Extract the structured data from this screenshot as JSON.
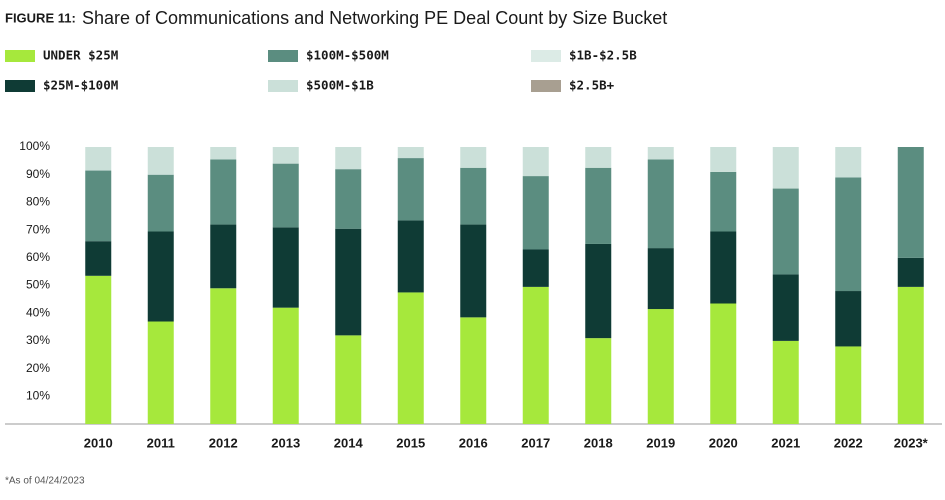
{
  "chart_data": {
    "type": "stacked_bar",
    "figure_label": "FIGURE 11:",
    "title": "Share of Communications and Networking PE Deal Count by Size Bucket",
    "footnote": "*As of 04/24/2023",
    "categories": [
      "2010",
      "2011",
      "2012",
      "2013",
      "2014",
      "2015",
      "2016",
      "2017",
      "2018",
      "2019",
      "2020",
      "2021",
      "2022",
      "2023*"
    ],
    "series": [
      {
        "name": "UNDER $25M",
        "color": "#a6e83c",
        "values": [
          53.5,
          37,
          49,
          42,
          32,
          47.5,
          38.5,
          49.5,
          31,
          41.5,
          43.5,
          30,
          28,
          49.5
        ]
      },
      {
        "name": "$25M-$100M",
        "color": "#0f3b35",
        "values": [
          12.5,
          32.5,
          23,
          29,
          38.5,
          26,
          33.5,
          13.5,
          34,
          22,
          26,
          24,
          20,
          10.5
        ]
      },
      {
        "name": "$100M-$500M",
        "color": "#5b8d80",
        "values": [
          25.5,
          20.5,
          23.5,
          23,
          21.5,
          22.5,
          20.5,
          26.5,
          27.5,
          32,
          21.5,
          31,
          41,
          40
        ]
      },
      {
        "name": "$500M-$1B",
        "color": "#cbe0d9",
        "values": [
          8.5,
          10,
          4.5,
          6,
          8,
          4,
          7.5,
          10.5,
          7.5,
          4.5,
          9,
          15,
          11,
          0
        ]
      },
      {
        "name": "$1B-$2.5B",
        "color": "#dcebe6",
        "values": [
          0,
          0,
          0,
          0,
          0,
          0,
          0,
          0,
          0,
          0,
          0,
          0,
          0,
          0
        ]
      },
      {
        "name": "$2.5B+",
        "color": "#a89f91",
        "values": [
          0,
          0,
          0,
          0,
          0,
          0,
          0,
          0,
          0,
          0,
          0,
          0,
          0,
          0
        ]
      }
    ],
    "ylim": [
      0,
      100
    ],
    "yticks": [
      {
        "value": 10,
        "label": "10%"
      },
      {
        "value": 20,
        "label": "20%"
      },
      {
        "value": 30,
        "label": "30%"
      },
      {
        "value": 40,
        "label": "40%"
      },
      {
        "value": 50,
        "label": "50%"
      },
      {
        "value": 60,
        "label": "60%"
      },
      {
        "value": 70,
        "label": "70%"
      },
      {
        "value": 80,
        "label": "80%"
      },
      {
        "value": 90,
        "label": "90%"
      },
      {
        "value": 100,
        "label": "100%"
      }
    ],
    "grid": false,
    "legend_position": "top"
  }
}
